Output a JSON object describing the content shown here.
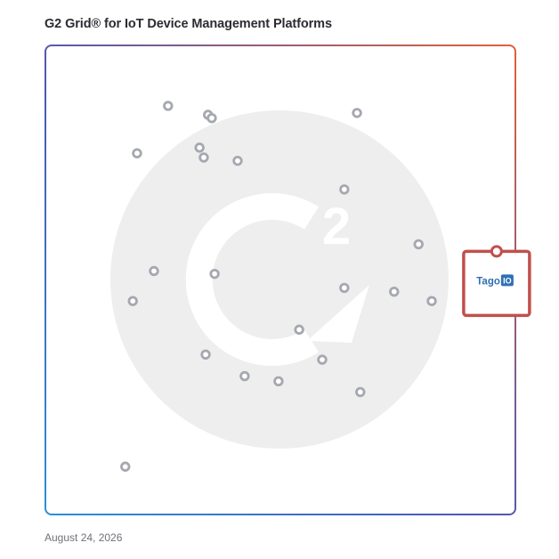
{
  "chart_data": {
    "type": "scatter",
    "title": "G2 Grid® for IoT Device Management Platforms",
    "xlim": [
      0,
      100
    ],
    "ylim": [
      0,
      100
    ],
    "grid": "quadrants",
    "points": [
      {
        "x": 26.1,
        "y": 87.1
      },
      {
        "x": 34.6,
        "y": 85.2
      },
      {
        "x": 35.4,
        "y": 84.5
      },
      {
        "x": 19.5,
        "y": 77.0
      },
      {
        "x": 32.8,
        "y": 78.2
      },
      {
        "x": 33.7,
        "y": 76.1
      },
      {
        "x": 40.9,
        "y": 75.4
      },
      {
        "x": 66.3,
        "y": 85.6
      },
      {
        "x": 63.6,
        "y": 69.3
      },
      {
        "x": 79.4,
        "y": 57.6
      },
      {
        "x": 23.1,
        "y": 51.9
      },
      {
        "x": 36.0,
        "y": 51.3
      },
      {
        "x": 18.6,
        "y": 45.5
      },
      {
        "x": 63.6,
        "y": 48.3
      },
      {
        "x": 74.2,
        "y": 47.5
      },
      {
        "x": 82.2,
        "y": 45.5
      },
      {
        "x": 54.0,
        "y": 39.4
      },
      {
        "x": 58.9,
        "y": 33.0
      },
      {
        "x": 34.1,
        "y": 34.1
      },
      {
        "x": 42.4,
        "y": 29.5
      },
      {
        "x": 49.6,
        "y": 28.4
      },
      {
        "x": 67.0,
        "y": 26.1
      },
      {
        "x": 17.0,
        "y": 10.2
      }
    ],
    "highlight": {
      "name": "TagoIO",
      "brand_text": "Tago",
      "brand_badge": "IO",
      "x": 96.0,
      "y": 52.3
    }
  },
  "date": "August 24, 2026",
  "colors": {
    "title": "#2b2b33",
    "date": "#6f6f78",
    "point": "#a6a8b0",
    "highlight_frame": "#c0504d",
    "brand": "#2f6fb4",
    "watermark": "#eeeeef"
  }
}
